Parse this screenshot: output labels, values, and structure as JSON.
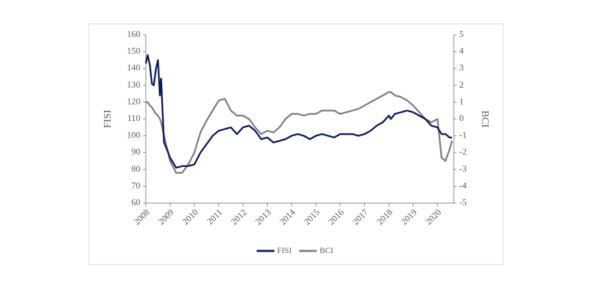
{
  "chart_data": {
    "type": "line",
    "y_label": "FISI",
    "y2_label": "BCI",
    "x": [
      2008.0,
      2008.08,
      2008.17,
      2008.25,
      2008.33,
      2008.42,
      2008.5,
      2008.58,
      2008.63,
      2008.75,
      2008.92,
      2009.0,
      2009.25,
      2009.5,
      2009.75,
      2010.0,
      2010.25,
      2010.5,
      2010.75,
      2011.0,
      2011.25,
      2011.5,
      2011.75,
      2012.0,
      2012.25,
      2012.5,
      2012.75,
      2013.0,
      2013.25,
      2013.5,
      2013.75,
      2014.0,
      2014.25,
      2014.5,
      2014.75,
      2015.0,
      2015.25,
      2015.5,
      2015.75,
      2016.0,
      2016.25,
      2016.5,
      2016.75,
      2017.0,
      2017.25,
      2017.5,
      2017.75,
      2018.0,
      2018.08,
      2018.25,
      2018.5,
      2018.75,
      2019.0,
      2019.25,
      2019.5,
      2019.75,
      2020.0,
      2020.17,
      2020.33,
      2020.5,
      2020.6
    ],
    "series": [
      {
        "name": "FISI",
        "color": "#0d1a5c",
        "axis": "y",
        "values": [
          143,
          148,
          142,
          131,
          130,
          140,
          145,
          124,
          134,
          96,
          90,
          87,
          81,
          82,
          82,
          83,
          90,
          95,
          100,
          103,
          104,
          105,
          101,
          105,
          106,
          103,
          98,
          99,
          96,
          97,
          98,
          100,
          101,
          100,
          98,
          100,
          101,
          100,
          99,
          101,
          101,
          101,
          100,
          101,
          103,
          106,
          108,
          112,
          110,
          113,
          114,
          115,
          114,
          112,
          110,
          106,
          105,
          101,
          101,
          99,
          99
        ]
      },
      {
        "name": "BCI",
        "color": "#808080",
        "axis": "y2",
        "values": [
          1.0,
          1.0,
          0.8,
          0.7,
          0.5,
          0.3,
          0.2,
          0,
          -0.2,
          -1,
          -2,
          -2.5,
          -3.2,
          -3.2,
          -2.7,
          -2,
          -0.8,
          -0.1,
          0.5,
          1.1,
          1.2,
          0.5,
          0.2,
          0.2,
          0,
          -0.5,
          -0.9,
          -0.7,
          -0.8,
          -0.5,
          0,
          0.3,
          0.3,
          0.2,
          0.3,
          0.3,
          0.5,
          0.5,
          0.5,
          0.3,
          0.4,
          0.5,
          0.6,
          0.8,
          1.0,
          1.2,
          1.4,
          1.6,
          1.6,
          1.4,
          1.3,
          1.1,
          0.8,
          0.4,
          0,
          -0.2,
          0,
          -2.3,
          -2.5,
          -1.8,
          -1.3
        ]
      }
    ],
    "xlim": [
      2008,
      2020.67
    ],
    "xticks": [
      2008,
      2009,
      2010,
      2011,
      2012,
      2013,
      2014,
      2015,
      2016,
      2017,
      2018,
      2019,
      2020
    ],
    "ylim": [
      60,
      160
    ],
    "yticks": [
      60,
      70,
      80,
      90,
      100,
      110,
      120,
      130,
      140,
      150,
      160
    ],
    "y2lim": [
      -5,
      5
    ],
    "y2ticks": [
      -5,
      -4,
      -3,
      -2,
      -1,
      0,
      1,
      2,
      3,
      4,
      5
    ],
    "grid": false,
    "legend": "bottom"
  }
}
